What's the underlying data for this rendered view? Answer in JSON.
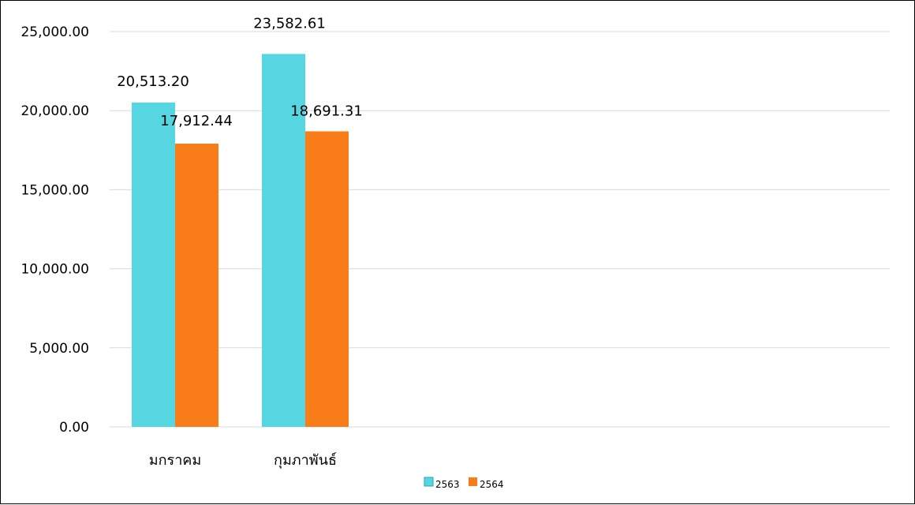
{
  "chart_data": {
    "type": "bar",
    "categories": [
      "มกราคม",
      "กุมภาพันธ์"
    ],
    "series": [
      {
        "name": "2563",
        "values": [
          20513.2,
          23582.61
        ],
        "labels": [
          "20,513.20",
          "23,582.61"
        ],
        "color": "#55d6e0"
      },
      {
        "name": "2564",
        "values": [
          17912.44,
          18691.31
        ],
        "labels": [
          "17,912.44",
          "18,691.31"
        ],
        "color": "#f87c17"
      }
    ],
    "y_ticks": [
      "0.00",
      "5,000.00",
      "10,000.00",
      "15,000.00",
      "20,000.00",
      "25,000.00"
    ],
    "ylim": [
      0,
      25000
    ],
    "grid": true,
    "legend_position": "bottom"
  }
}
